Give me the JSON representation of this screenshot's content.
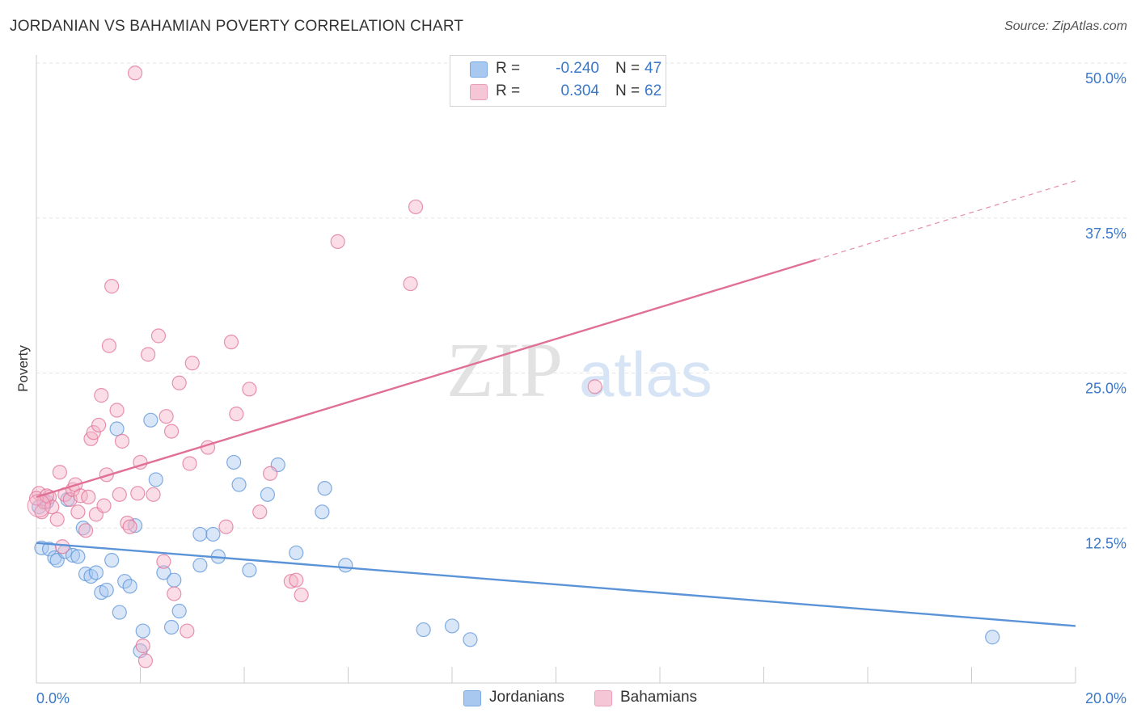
{
  "title": "JORDANIAN VS BAHAMIAN POVERTY CORRELATION CHART",
  "source": "Source: ZipAtlas.com",
  "watermark": {
    "zip": "ZIP",
    "atlas": "atlas"
  },
  "legend": {
    "rows": [
      {
        "r_label": "R =",
        "r_value": "-0.240",
        "n_label": "N =",
        "n_value": "47",
        "color": "#a9c8f0"
      },
      {
        "r_label": "R =",
        "r_value": "0.304",
        "n_label": "N =",
        "n_value": "62",
        "color": "#f5b3c8"
      }
    ]
  },
  "bottom_legend": {
    "series1": "Jordanians",
    "series2": "Bahamians"
  },
  "chart_data": {
    "type": "scatter",
    "ylabel": "Poverty",
    "xlim": [
      0,
      20
    ],
    "ylim": [
      0,
      50
    ],
    "x_ticks": [
      "0.0%",
      "20.0%"
    ],
    "y_ticks": [
      {
        "value": 12.5,
        "label": "12.5%"
      },
      {
        "value": 25.0,
        "label": "25.0%"
      },
      {
        "value": 37.5,
        "label": "37.5%"
      },
      {
        "value": 50.0,
        "label": "50.0%"
      }
    ],
    "grid": true,
    "legend_position": "top-center",
    "series": [
      {
        "name": "Jordanians",
        "color": "#5b93d8",
        "fill": "#a9c8f0",
        "trend": {
          "x": [
            0,
            20
          ],
          "y": [
            11.3,
            4.6
          ],
          "dashed_from": null
        },
        "points": [
          [
            0.1,
            10.9
          ],
          [
            0.25,
            10.8
          ],
          [
            0.35,
            10.1
          ],
          [
            0.4,
            9.9
          ],
          [
            0.55,
            10.6
          ],
          [
            0.7,
            10.3
          ],
          [
            0.8,
            10.2
          ],
          [
            0.6,
            14.8
          ],
          [
            0.9,
            12.5
          ],
          [
            0.95,
            8.8
          ],
          [
            1.05,
            8.6
          ],
          [
            1.15,
            8.9
          ],
          [
            1.25,
            7.3
          ],
          [
            1.35,
            7.5
          ],
          [
            1.45,
            9.9
          ],
          [
            1.55,
            20.5
          ],
          [
            1.6,
            5.7
          ],
          [
            1.7,
            8.2
          ],
          [
            1.8,
            7.8
          ],
          [
            1.9,
            12.7
          ],
          [
            2.0,
            2.6
          ],
          [
            2.05,
            4.2
          ],
          [
            2.2,
            21.2
          ],
          [
            2.3,
            16.4
          ],
          [
            2.45,
            8.9
          ],
          [
            2.6,
            4.5
          ],
          [
            2.65,
            8.3
          ],
          [
            2.75,
            5.8
          ],
          [
            3.15,
            9.5
          ],
          [
            3.15,
            12.0
          ],
          [
            3.4,
            12.0
          ],
          [
            3.5,
            10.2
          ],
          [
            3.8,
            17.8
          ],
          [
            3.9,
            16.0
          ],
          [
            4.1,
            9.1
          ],
          [
            4.45,
            15.2
          ],
          [
            4.65,
            17.6
          ],
          [
            5.0,
            10.5
          ],
          [
            5.5,
            13.8
          ],
          [
            5.55,
            15.7
          ],
          [
            5.95,
            9.5
          ],
          [
            7.45,
            4.3
          ],
          [
            8.0,
            4.6
          ],
          [
            8.35,
            3.5
          ],
          [
            18.4,
            3.7
          ],
          [
            0.05,
            14.2
          ],
          [
            0.2,
            14.6
          ]
        ]
      },
      {
        "name": "Bahamians",
        "color": "#e07095",
        "fill": "#f5b3c8",
        "trend": {
          "x": [
            0,
            20
          ],
          "y": [
            15.0,
            40.5
          ],
          "dashed_from": 15.0
        },
        "points": [
          [
            0.05,
            15.3
          ],
          [
            0.1,
            13.8
          ],
          [
            0.15,
            14.6
          ],
          [
            0.25,
            15.0
          ],
          [
            0.3,
            14.2
          ],
          [
            0.4,
            13.2
          ],
          [
            0.45,
            17.0
          ],
          [
            0.5,
            11.0
          ],
          [
            0.55,
            15.2
          ],
          [
            0.65,
            14.8
          ],
          [
            0.7,
            15.6
          ],
          [
            0.75,
            16.0
          ],
          [
            0.8,
            13.8
          ],
          [
            0.85,
            15.1
          ],
          [
            0.95,
            12.3
          ],
          [
            1.0,
            15.0
          ],
          [
            1.05,
            19.7
          ],
          [
            1.1,
            20.2
          ],
          [
            1.15,
            13.6
          ],
          [
            1.2,
            20.8
          ],
          [
            1.25,
            23.2
          ],
          [
            1.3,
            14.3
          ],
          [
            1.35,
            16.8
          ],
          [
            1.4,
            27.2
          ],
          [
            1.45,
            32.0
          ],
          [
            1.55,
            22.0
          ],
          [
            1.6,
            15.2
          ],
          [
            1.65,
            19.5
          ],
          [
            1.75,
            12.9
          ],
          [
            1.8,
            12.6
          ],
          [
            1.9,
            49.2
          ],
          [
            1.95,
            15.3
          ],
          [
            2.0,
            17.8
          ],
          [
            2.05,
            3.0
          ],
          [
            2.1,
            1.8
          ],
          [
            2.15,
            26.5
          ],
          [
            2.25,
            15.2
          ],
          [
            2.35,
            28.0
          ],
          [
            2.45,
            9.8
          ],
          [
            2.5,
            21.5
          ],
          [
            2.6,
            20.3
          ],
          [
            2.65,
            7.2
          ],
          [
            2.75,
            24.2
          ],
          [
            2.9,
            4.2
          ],
          [
            2.95,
            17.7
          ],
          [
            3.0,
            25.8
          ],
          [
            3.3,
            19.0
          ],
          [
            3.65,
            12.6
          ],
          [
            3.75,
            27.5
          ],
          [
            3.85,
            21.7
          ],
          [
            4.1,
            23.7
          ],
          [
            4.3,
            13.8
          ],
          [
            4.5,
            16.9
          ],
          [
            4.9,
            8.2
          ],
          [
            5.0,
            8.3
          ],
          [
            5.1,
            7.1
          ],
          [
            5.8,
            35.6
          ],
          [
            7.2,
            32.2
          ],
          [
            7.3,
            38.4
          ],
          [
            10.75,
            23.9
          ],
          [
            0.0,
            14.9
          ],
          [
            0.2,
            15.1
          ]
        ]
      }
    ]
  }
}
